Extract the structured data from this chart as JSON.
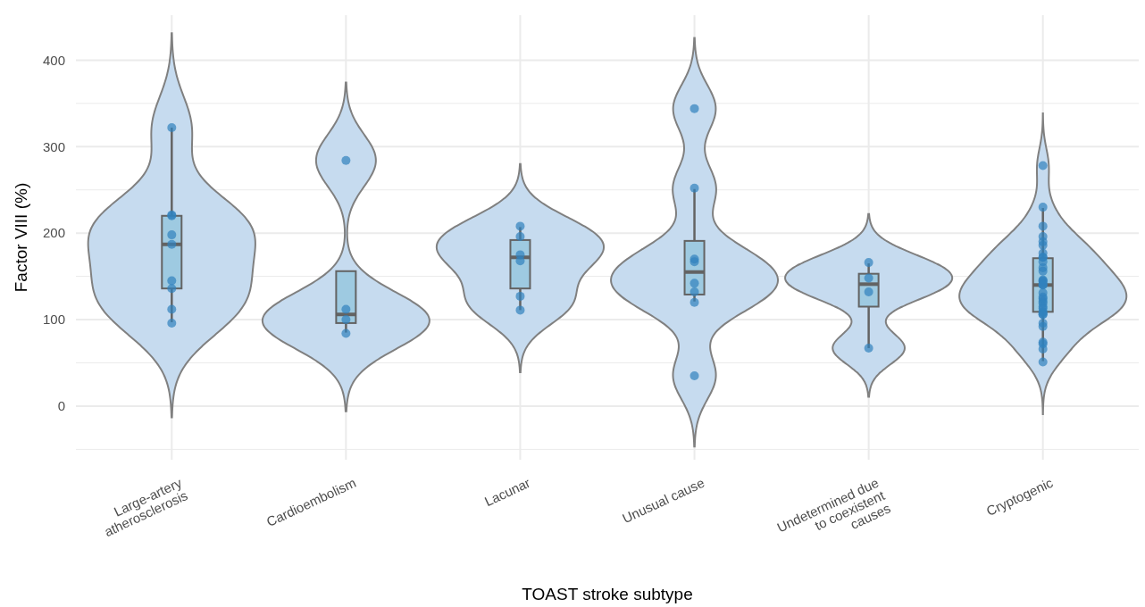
{
  "chart_data": {
    "type": "box",
    "xlabel": "TOAST stroke subtype",
    "ylabel": "Factor VIII (%)",
    "categories": [
      "Large-artery\natherosclerosis",
      "Cardioembolism",
      "Lacunar",
      "Unusual cause",
      "Undetermined due\nto coexistent\ncauses",
      "Cryptogenic"
    ],
    "ylim": [
      -62,
      452
    ],
    "yticks": [
      {
        "value": -50,
        "label": null
      },
      0,
      {
        "value": 50,
        "label": null
      },
      100,
      {
        "value": 150,
        "label": null
      },
      200,
      {
        "value": 250,
        "label": null
      },
      300,
      {
        "value": 350,
        "label": null
      },
      400
    ],
    "grid": true,
    "series": [
      {
        "color": "#9ecae1",
        "boxes": [
          {
            "low": 97,
            "q1": 136,
            "median": 187,
            "q3": 220,
            "high": 322
          },
          {
            "low": 85,
            "q1": 96,
            "median": 106,
            "q3": 156,
            "high": 156
          },
          {
            "low": 111,
            "q1": 136,
            "median": 172,
            "q3": 192,
            "high": 207
          },
          {
            "low": 121,
            "q1": 129,
            "median": 155,
            "q3": 191,
            "high": 251
          },
          {
            "low": 67,
            "q1": 115,
            "median": 141,
            "q3": 153,
            "high": 165
          },
          {
            "low": 52,
            "q1": 109,
            "median": 140,
            "q3": 171,
            "high": 229
          }
        ]
      },
      {
        "type": "scatter",
        "color": "#3182bd",
        "marker": "circle",
        "x": [
          "Large-artery\natherosclerosis",
          "Large-artery\natherosclerosis",
          "Large-artery\natherosclerosis",
          "Large-artery\natherosclerosis",
          "Large-artery\natherosclerosis",
          "Large-artery\natherosclerosis",
          "Large-artery\natherosclerosis",
          "Large-artery\natherosclerosis",
          "Large-artery\natherosclerosis",
          "Cardioembolism",
          "Cardioembolism",
          "Cardioembolism",
          "Cardioembolism",
          "Lacunar",
          "Lacunar",
          "Lacunar",
          "Lacunar",
          "Lacunar",
          "Lacunar",
          "Unusual cause",
          "Unusual cause",
          "Unusual cause",
          "Unusual cause",
          "Unusual cause",
          "Unusual cause",
          "Unusual cause",
          "Unusual cause",
          "Undetermined due\nto coexistent\ncauses",
          "Undetermined due\nto coexistent\ncauses",
          "Undetermined due\nto coexistent\ncauses",
          "Undetermined due\nto coexistent\ncauses",
          "Cryptogenic",
          "Cryptogenic",
          "Cryptogenic",
          "Cryptogenic",
          "Cryptogenic",
          "Cryptogenic",
          "Cryptogenic",
          "Cryptogenic",
          "Cryptogenic",
          "Cryptogenic",
          "Cryptogenic",
          "Cryptogenic",
          "Cryptogenic",
          "Cryptogenic",
          "Cryptogenic",
          "Cryptogenic",
          "Cryptogenic",
          "Cryptogenic",
          "Cryptogenic",
          "Cryptogenic",
          "Cryptogenic",
          "Cryptogenic",
          "Cryptogenic",
          "Cryptogenic",
          "Cryptogenic",
          "Cryptogenic",
          "Cryptogenic",
          "Cryptogenic",
          "Cryptogenic",
          "Cryptogenic",
          "Cryptogenic",
          "Cryptogenic",
          "Cryptogenic",
          "Cryptogenic",
          "Cryptogenic"
        ],
        "values": [
          322,
          220,
          221,
          198,
          187,
          145,
          136,
          112,
          96,
          284,
          112,
          100,
          84,
          208,
          196,
          175,
          168,
          127,
          111,
          344,
          252,
          167,
          170,
          142,
          132,
          120,
          35,
          166,
          148,
          132,
          67,
          278,
          230,
          208,
          196,
          190,
          186,
          172,
          177,
          172,
          167,
          160,
          156,
          146,
          145,
          144,
          140,
          140,
          141,
          131,
          126,
          124,
          121,
          119,
          115,
          113,
          108,
          109,
          106,
          106,
          96,
          92,
          74,
          72,
          66,
          51
        ]
      }
    ]
  }
}
